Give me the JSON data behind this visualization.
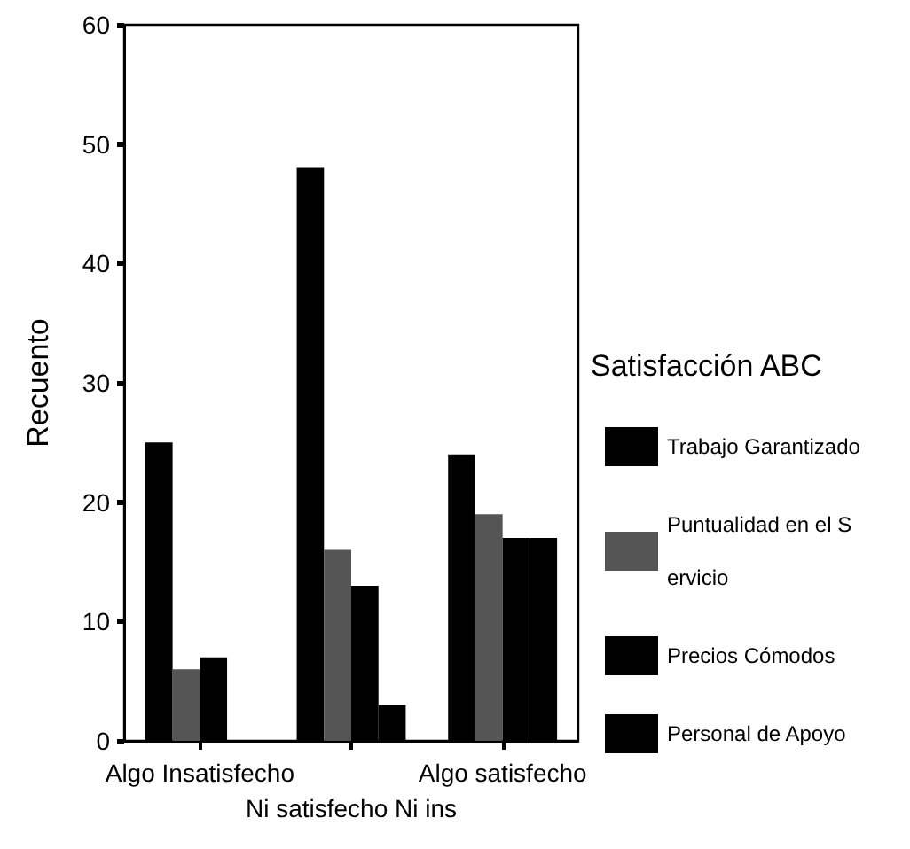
{
  "chart_data": {
    "type": "bar",
    "ylabel": "Recuento",
    "legend_title": "Satisfacción ABC",
    "categories": [
      "Algo Insatisfecho",
      "Ni satisfecho Ni ins",
      "Algo satisfecho"
    ],
    "series": [
      {
        "name": "Trabajo Garantizado",
        "color": "#000000",
        "values": [
          25,
          48,
          24
        ]
      },
      {
        "name": "Puntualidad en el Servicio",
        "color": "#555555",
        "values": [
          6,
          16,
          19
        ]
      },
      {
        "name": "Precios Cómodos",
        "color": "#000000",
        "values": [
          7,
          13,
          17
        ]
      },
      {
        "name": "Personal de Apoyo",
        "color": "#000000",
        "values": [
          0,
          3,
          17
        ]
      }
    ],
    "ylim": [
      0,
      60
    ],
    "yticks": [
      0,
      10,
      20,
      30,
      40,
      50,
      60
    ],
    "grid": false,
    "legend": "right"
  }
}
